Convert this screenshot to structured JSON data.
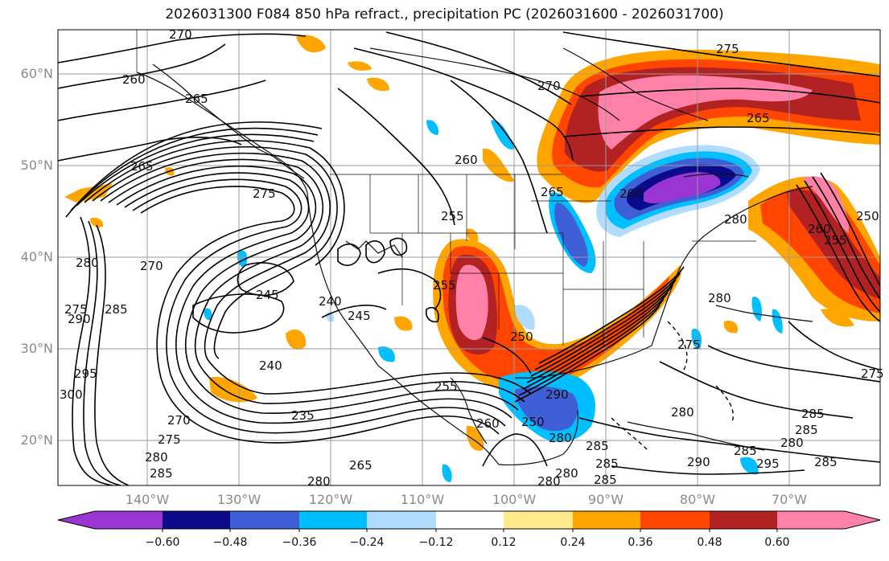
{
  "title": "2026031300 F084 850 hPa refract., precipitation PC (2026031600 - 2026031700)",
  "colors": {
    "neg_extreme": "#9a34d3",
    "neg_060": "#0a0a8a",
    "neg_048": "#3f5fd6",
    "neg_036": "#00bfff",
    "neg_024": "#b0dcff",
    "zero": "#ffffff",
    "pos_012": "#ffe98a",
    "pos_024": "#ffa500",
    "pos_036": "#ff4500",
    "pos_048": "#b22222",
    "pos_060": "#ff80a8"
  },
  "lat_labels": [
    "60°N",
    "50°N",
    "40°N",
    "30°N",
    "20°N"
  ],
  "lon_labels": [
    "140°W",
    "130°W",
    "120°W",
    "110°W",
    "100°W",
    "90°W",
    "80°W",
    "70°W"
  ],
  "colorbar_ticks": [
    "−0.60",
    "−0.48",
    "−0.36",
    "−0.24",
    "−0.12",
    "0.12",
    "0.24",
    "0.36",
    "0.48",
    "0.60"
  ],
  "contour_labels": [
    "270",
    "275",
    "260",
    "265",
    "265",
    "270",
    "265",
    "275",
    "260",
    "265",
    "280",
    "250",
    "255",
    "255",
    "260",
    "280",
    "290",
    "285",
    "275",
    "270",
    "245",
    "240",
    "255",
    "250",
    "245",
    "235",
    "240",
    "290",
    "280",
    "285",
    "280",
    "280",
    "275",
    "285",
    "265",
    "280",
    "300",
    "295",
    "270",
    "275",
    "280",
    "285",
    "250",
    "255",
    "260",
    "260",
    "280",
    "285",
    "280",
    "285",
    "295",
    "285",
    "285",
    "275",
    "280",
    "285",
    "290"
  ]
}
